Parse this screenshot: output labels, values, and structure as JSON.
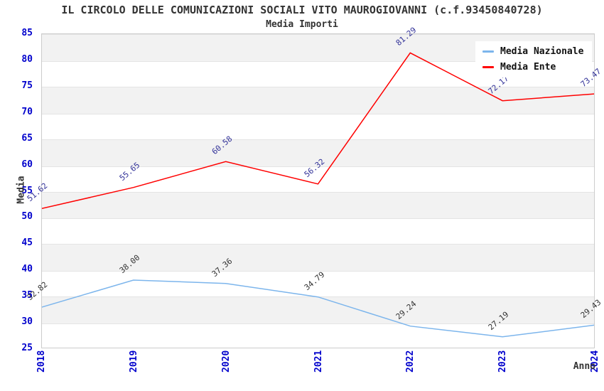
{
  "chart_data": {
    "type": "line",
    "title": "IL CIRCOLO DELLE COMUNICAZIONI SOCIALI VITO MAUROGIOVANNI (c.f.93450840728)",
    "subtitle": "Media Importi",
    "xlabel": "Anno",
    "ylabel": "Media",
    "categories": [
      "2018",
      "2019",
      "2020",
      "2021",
      "2022",
      "2023",
      "2024"
    ],
    "ylim": [
      25,
      85
    ],
    "ytick_step": 5,
    "yticks": [
      85,
      80,
      75,
      70,
      65,
      60,
      55,
      50,
      45,
      40,
      35,
      30,
      25
    ],
    "grid": "alternating-horizontal-bands",
    "legend_position": "top-right",
    "series": [
      {
        "name": "Media Nazionale",
        "color": "#7cb5ec",
        "label_color": "#333333",
        "values": [
          32.82,
          38.0,
          37.36,
          34.79,
          29.24,
          27.19,
          29.43
        ]
      },
      {
        "name": "Media Ente",
        "color": "#ff0000",
        "label_color": "#333399",
        "values": [
          51.62,
          55.65,
          60.58,
          56.32,
          81.29,
          72.17,
          73.47
        ]
      }
    ],
    "colors": {
      "band": "#f2f2f2",
      "plot_border": "#cccccc",
      "axis_tick_text": "#0000cc",
      "title_text": "#333333"
    }
  }
}
